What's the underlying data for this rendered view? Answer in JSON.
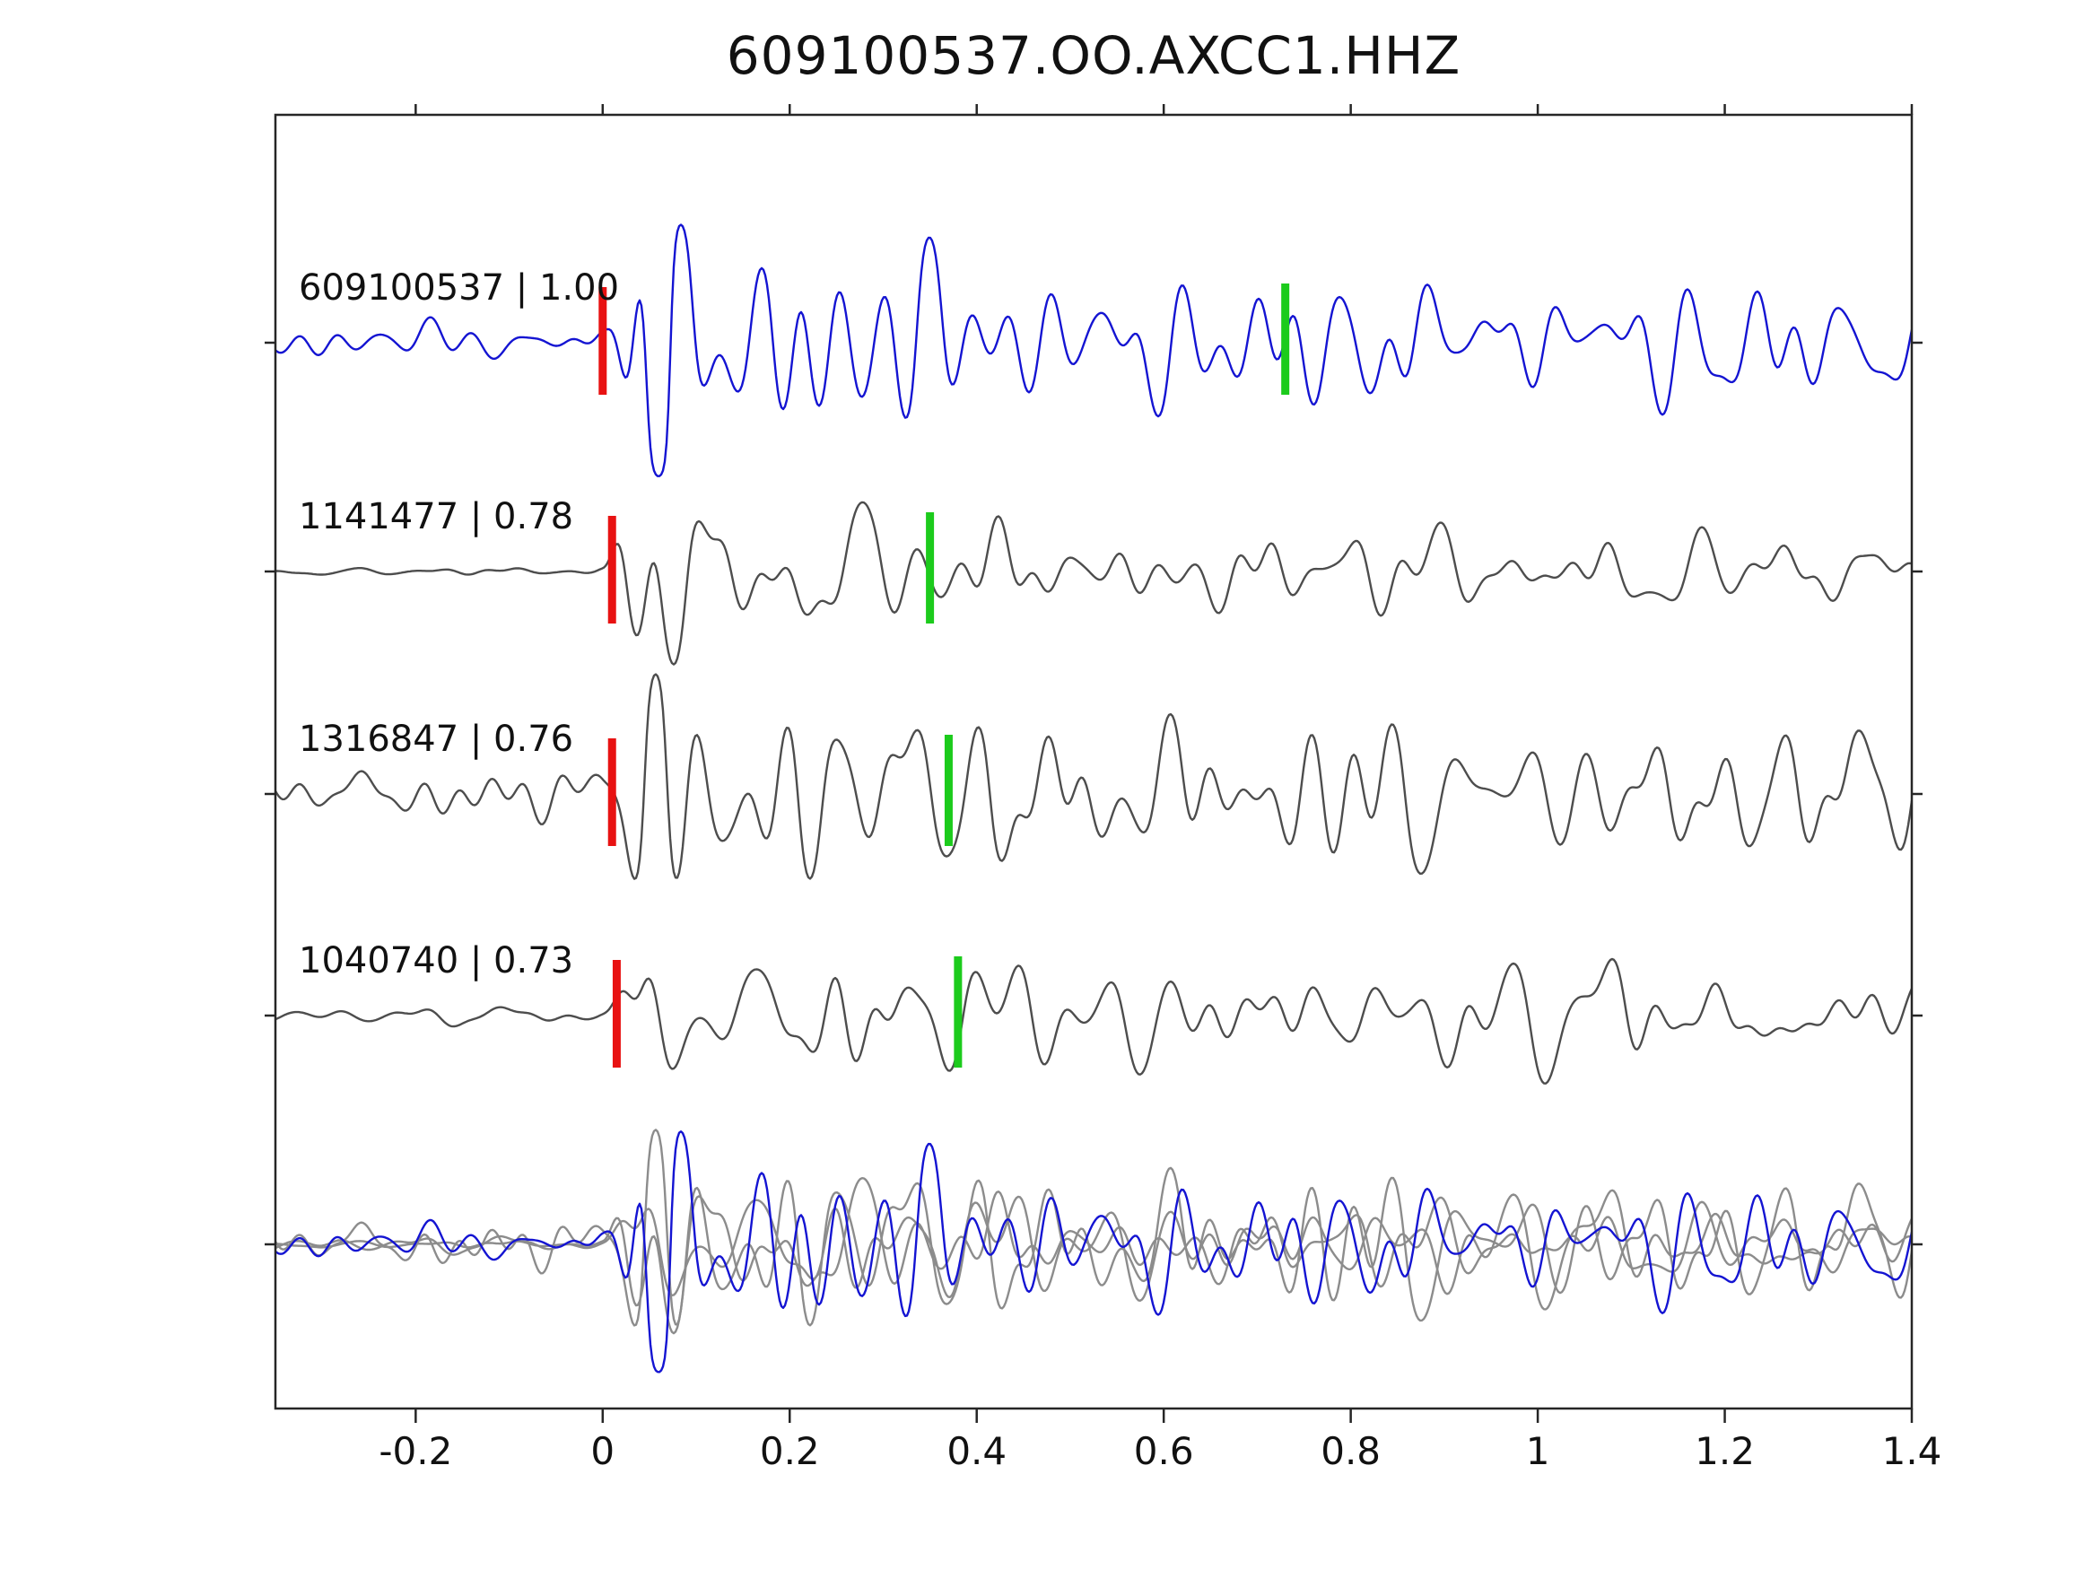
{
  "title": "609100537.OO.AXCC1.HHZ",
  "colors": {
    "template_trace": "#1414d2",
    "match_trace": "#4d4d4d",
    "overlay_gray": "#8c8c8c",
    "pick_red": "#e81212",
    "pick_green": "#1ccb1c",
    "axis": "#262626",
    "text": "#111111",
    "background": "#ffffff"
  },
  "chart_data": {
    "type": "line",
    "title": "609100537.OO.AXCC1.HHZ",
    "xlabel": "",
    "ylabel": "",
    "xlim": [
      -0.35,
      1.4
    ],
    "x_ticks": [
      "-0.2",
      "0",
      "0.2",
      "0.4",
      "0.6",
      "0.8",
      "1",
      "1.2",
      "1.4"
    ],
    "x_tick_values": [
      -0.2,
      0,
      0.2,
      0.4,
      0.6,
      0.8,
      1,
      1.2,
      1.4
    ],
    "grid": false,
    "legend_position": "none",
    "description": "Stacked seismogram waveforms: template event (blue) and three matched detections (gray), each with a red pick bar near t=0 and a green pick bar later in the coda; bottom row overlays all aligned traces.",
    "traces": [
      {
        "label": "609100537 | 1.00",
        "template_id": "609100537",
        "similarity": 1.0,
        "row": 0,
        "color_role": "template_trace",
        "red_pick_x": 0.0,
        "green_pick_x": 0.73,
        "pre_noise": 0.26,
        "burst_amp": 1.0,
        "seed": 7
      },
      {
        "label": "1141477 | 0.78",
        "template_id": "1141477",
        "similarity": 0.78,
        "row": 1,
        "color_role": "match_trace",
        "red_pick_x": 0.01,
        "green_pick_x": 0.35,
        "pre_noise": 0.05,
        "burst_amp": 1.0,
        "seed": 13
      },
      {
        "label": "1316847 | 0.76",
        "template_id": "1316847",
        "similarity": 0.76,
        "row": 2,
        "color_role": "match_trace",
        "red_pick_x": 0.01,
        "green_pick_x": 0.37,
        "pre_noise": 0.3,
        "burst_amp": 1.05,
        "seed": 21
      },
      {
        "label": "1040740 | 0.73",
        "template_id": "1040740",
        "similarity": 0.73,
        "row": 3,
        "color_role": "match_trace",
        "red_pick_x": 0.015,
        "green_pick_x": 0.38,
        "pre_noise": 0.1,
        "burst_amp": 1.0,
        "seed": 35
      }
    ],
    "overlay_row": {
      "row": 4,
      "members": [
        "1141477",
        "1316847",
        "1040740",
        "609100537"
      ],
      "note": "all aligned traces overplotted; matches in light gray, template in blue on top"
    }
  }
}
